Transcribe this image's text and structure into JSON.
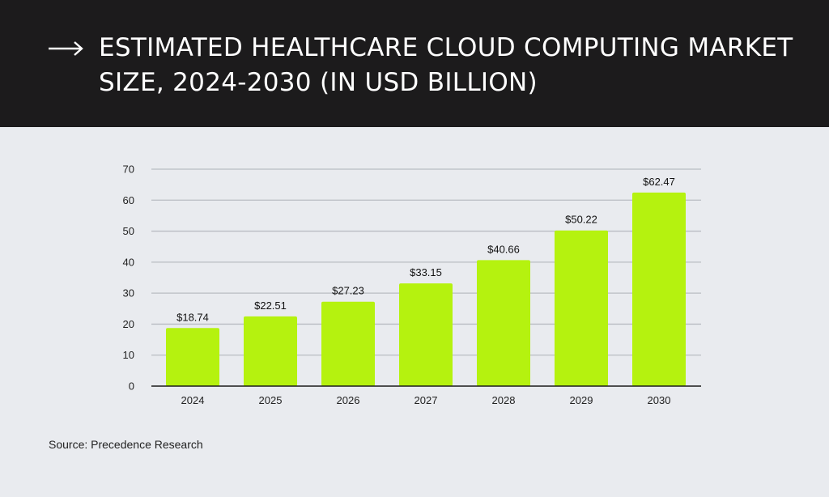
{
  "header": {
    "title": "ESTIMATED HEALTHCARE CLOUD COMPUTING MARKET SIZE, 2024-2030 (IN USD BILLION)",
    "arrow_icon": "arrow-right-icon"
  },
  "chart_data": {
    "type": "bar",
    "title": "ESTIMATED HEALTHCARE CLOUD COMPUTING MARKET SIZE, 2024-2030 (IN USD BILLION)",
    "categories": [
      "2024",
      "2025",
      "2026",
      "2027",
      "2028",
      "2029",
      "2030"
    ],
    "values": [
      18.74,
      22.51,
      27.23,
      33.15,
      40.66,
      50.22,
      62.47
    ],
    "data_labels": [
      "$18.74",
      "$22.51",
      "$27.23",
      "$33.15",
      "$40.66",
      "$50.22",
      "$62.47"
    ],
    "xlabel": "",
    "ylabel": "",
    "ylim": [
      0,
      70
    ],
    "yticks": [
      0,
      10,
      20,
      30,
      40,
      50,
      60,
      70
    ],
    "grid": true,
    "legend": "none",
    "bar_color": "#b5f20f",
    "grid_color": "#b9bcc2",
    "axis_color": "#1a1a1a"
  },
  "source": {
    "text": "Source: Precedence Research"
  }
}
